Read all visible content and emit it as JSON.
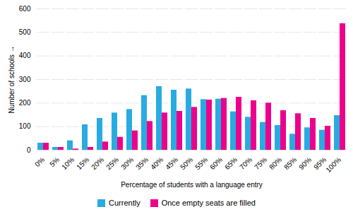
{
  "chart_data": {
    "type": "bar",
    "categories": [
      "0%",
      "5%",
      "10%",
      "15%",
      "20%",
      "25%",
      "30%",
      "35%",
      "40%",
      "45%",
      "50%",
      "55%",
      "60%",
      "65%",
      "70%",
      "75%",
      "80%",
      "85%",
      "90%",
      "95%",
      "100%"
    ],
    "series": [
      {
        "name": "Currently",
        "color": "#29ABE2",
        "values": [
          30,
          12,
          40,
          108,
          135,
          158,
          173,
          232,
          270,
          255,
          260,
          215,
          217,
          163,
          140,
          118,
          105,
          68,
          95,
          85,
          147
        ]
      },
      {
        "name": "Once empty seats are filled",
        "color": "#EC008C",
        "values": [
          30,
          12,
          5,
          12,
          35,
          55,
          82,
          122,
          158,
          165,
          182,
          213,
          220,
          225,
          210,
          200,
          168,
          155,
          135,
          102,
          537
        ]
      }
    ],
    "xlabel": "Percentage of students with a language entry",
    "ylabel": "Number of schools",
    "ylim": [
      0,
      600
    ],
    "yticks": [
      0,
      100,
      200,
      300,
      400,
      500,
      600
    ],
    "grid": true,
    "legend": "bottom"
  }
}
